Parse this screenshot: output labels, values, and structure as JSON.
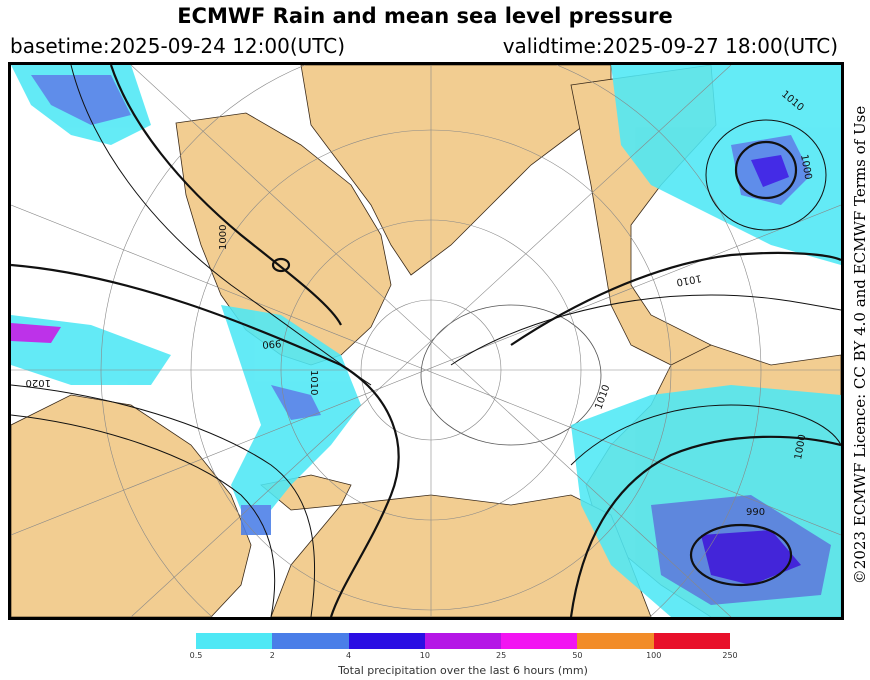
{
  "header": {
    "title": "ECMWF Rain and mean sea level pressure",
    "basetime": "basetime:2025-09-24 12:00(UTC)",
    "validtime": "validtime:2025-09-27 18:00(UTC)"
  },
  "credit": "©2023 ECMWF Licence: CC BY 4.0 and ECMWF Terms of Use",
  "map": {
    "land_color": "#f2cd91",
    "ocean_color": "#ffffff",
    "isobar_labels": [
      "1010",
      "1000",
      "1010",
      "1020",
      "990",
      "1010",
      "1010",
      "1000",
      "990",
      "1000"
    ]
  },
  "legend": {
    "title": "Total precipitation over the last 6 hours (mm)",
    "ticks": [
      "0.5",
      "2",
      "4",
      "10",
      "25",
      "50",
      "100",
      "250"
    ],
    "colors": [
      "#4ee8f5",
      "#4a7ee8",
      "#2b0ee3",
      "#b516e6",
      "#f214f2",
      "#f28c28",
      "#e8102a"
    ]
  }
}
